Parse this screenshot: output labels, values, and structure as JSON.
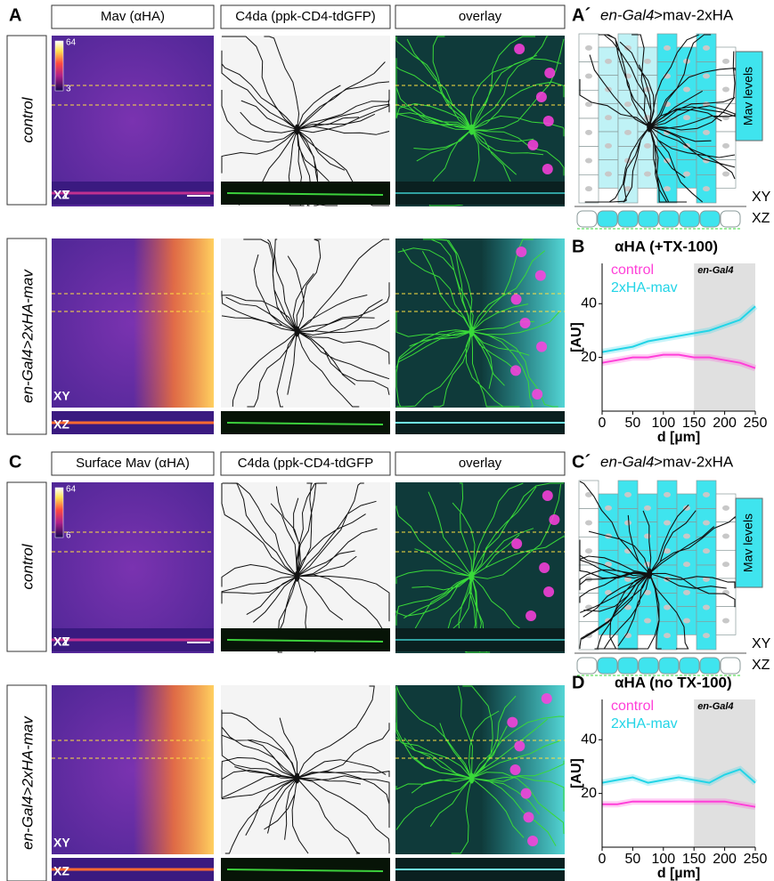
{
  "panel_A": {
    "letter": "A",
    "headers": [
      "Mav (αHA)",
      "C4da (ppk-CD4-tdGFP)",
      "overlay"
    ],
    "rows": [
      "control",
      "en-Gal4>2xHA-mav"
    ],
    "colorbar": [
      64,
      3
    ]
  },
  "panel_C": {
    "letter": "C",
    "headers": [
      "Surface Mav (αHA)",
      "C4da (ppk-CD4-tdGFP",
      "overlay"
    ],
    "rows": [
      "control",
      "en-Gal4>2xHA-mav"
    ],
    "colorbar": [
      64,
      6
    ]
  },
  "view_labels": [
    "XY",
    "XZ"
  ],
  "schematic_A": {
    "letter": "A´",
    "title_italic": "en-Gal4",
    "title_rest": ">mav-2xHA",
    "legend": "Mav levels"
  },
  "schematic_C": {
    "letter": "C´",
    "title_italic": "en-Gal4",
    "title_rest": ">mav-2xHA",
    "legend": "Mav levels"
  },
  "chart_data": [
    {
      "type": "line",
      "letter": "B",
      "title": "αHA (+TX-100)",
      "y_label": "[AU]",
      "x_label": "d [µm]",
      "x": [
        0,
        25,
        50,
        75,
        100,
        125,
        150,
        175,
        200,
        225,
        250
      ],
      "series": [
        {
          "name": "control",
          "color": "#ff3fd8",
          "values": [
            18,
            19,
            20,
            20,
            21,
            21,
            20,
            20,
            19,
            18,
            16
          ]
        },
        {
          "name": "2xHA-mav",
          "color": "#22d4e6",
          "values": [
            22,
            23,
            24,
            26,
            27,
            28,
            29,
            30,
            32,
            34,
            39
          ]
        }
      ],
      "shade": {
        "xrange": [
          150,
          250
        ],
        "label": "en-Gal4"
      },
      "xlim": [
        0,
        250
      ],
      "xticks": [
        0,
        50,
        100,
        150,
        200,
        250
      ],
      "ylim": [
        0,
        55
      ],
      "yticks": [
        20,
        40
      ]
    },
    {
      "type": "line",
      "letter": "D",
      "title": "αHA (no TX-100)",
      "y_label": "[AU]",
      "x_label": "d [µm]",
      "x": [
        0,
        25,
        50,
        75,
        100,
        125,
        150,
        175,
        200,
        225,
        250
      ],
      "series": [
        {
          "name": "control",
          "color": "#ff3fd8",
          "values": [
            16,
            16,
            17,
            17,
            17,
            17,
            17,
            17,
            17,
            16,
            15
          ]
        },
        {
          "name": "2xHA-mav",
          "color": "#22d4e6",
          "values": [
            24,
            25,
            26,
            24,
            25,
            26,
            25,
            24,
            27,
            29,
            24
          ]
        }
      ],
      "shade": {
        "xrange": [
          150,
          250
        ],
        "label": "en-Gal4"
      },
      "xlim": [
        0,
        250
      ],
      "xticks": [
        0,
        50,
        100,
        150,
        200,
        250
      ],
      "ylim": [
        0,
        55
      ],
      "yticks": [
        20,
        40
      ]
    }
  ]
}
